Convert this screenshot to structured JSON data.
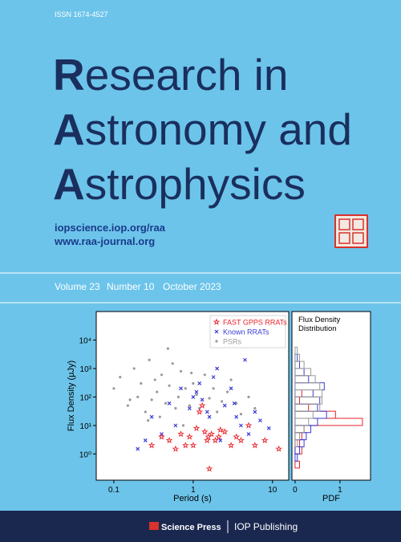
{
  "header": {
    "issn": "ISSN  1674-4527"
  },
  "title": {
    "lines": [
      {
        "initial": "R",
        "rest": "esearch in"
      },
      {
        "initial": "A",
        "rest": "stronomy and"
      },
      {
        "initial": "A",
        "rest": "strophysics"
      }
    ]
  },
  "links": [
    "iopscience.iop.org/raa",
    "www.raa-journal.org"
  ],
  "issue": {
    "volume": "Volume 23",
    "number": "Number 10",
    "date": "October 2023"
  },
  "figure": {
    "scatter": {
      "type": "scatter",
      "xlabel": "Period (s)",
      "ylabel": "Flux Density (µJy)",
      "log": true,
      "xlim": [
        0.06,
        16
      ],
      "ylim": [
        0.12,
        100000
      ],
      "xticks": [
        0.1,
        1,
        10
      ],
      "yticks": [
        {
          "value": 1,
          "label": "10⁰"
        },
        {
          "value": 10,
          "label": "10¹"
        },
        {
          "value": 100,
          "label": "10²"
        },
        {
          "value": 1000,
          "label": "10³"
        },
        {
          "value": 10000,
          "label": "10⁴"
        }
      ],
      "legend": "upper right",
      "series": [
        {
          "name": "FAST GPPS RRATs",
          "color": "#e8232a",
          "marker": "star",
          "x": [
            0.3,
            0.5,
            0.7,
            0.9,
            1.1,
            1.2,
            1.4,
            1.5,
            1.7,
            1.9,
            2.1,
            2.5,
            3,
            3.5,
            4,
            5,
            6,
            8,
            12,
            0.6,
            0.8,
            1.3,
            1.6,
            2.2,
            0.4,
            1.0,
            1.55
          ],
          "y": [
            2,
            3,
            5,
            4,
            8,
            30,
            6,
            3,
            5,
            3,
            4,
            6,
            2,
            4,
            3,
            10,
            2,
            3,
            1.5,
            1.5,
            2,
            50,
            0.3,
            7,
            4,
            2,
            4
          ]
        },
        {
          "name": "Known RRATs",
          "color": "#3a3ad6",
          "marker": "x",
          "x": [
            0.2,
            0.3,
            0.4,
            0.5,
            0.7,
            0.9,
            1,
            1.2,
            1.3,
            1.5,
            1.8,
            2,
            2.5,
            3,
            3.5,
            4,
            4.5,
            5,
            6,
            7,
            9,
            0.25,
            0.6,
            1.1,
            2.2,
            3.3,
            1.6
          ],
          "y": [
            1.5,
            20,
            5,
            60,
            200,
            40,
            100,
            300,
            80,
            30,
            500,
            1000,
            50,
            200,
            20,
            10,
            2000,
            5,
            30,
            15,
            8,
            3,
            10,
            150,
            3,
            60,
            20
          ]
        },
        {
          "name": "PSRs",
          "color": "#9a9a9a",
          "marker": "dot",
          "x": [
            0.1,
            0.12,
            0.15,
            0.18,
            0.2,
            0.22,
            0.25,
            0.28,
            0.3,
            0.33,
            0.35,
            0.4,
            0.45,
            0.5,
            0.55,
            0.6,
            0.65,
            0.7,
            0.8,
            0.9,
            1,
            1.1,
            1.2,
            1.4,
            1.6,
            1.8,
            2,
            2.3,
            2.7,
            3,
            3.5,
            4,
            5,
            6,
            0.38,
            0.48,
            0.75,
            0.95,
            0.27,
            0.16
          ],
          "y": [
            200,
            500,
            50,
            1000,
            100,
            300,
            30,
            2000,
            80,
            400,
            150,
            600,
            60,
            250,
            1500,
            40,
            100,
            800,
            200,
            50,
            300,
            120,
            40,
            600,
            90,
            200,
            30,
            70,
            150,
            400,
            60,
            25,
            100,
            40,
            20,
            5000,
            10,
            700,
            15,
            80
          ]
        }
      ]
    },
    "histogram": {
      "type": "histogram",
      "title_lines": [
        "Flux Density",
        "Distribution"
      ],
      "xlabel": "PDF",
      "xlim": [
        -0.07,
        1.68
      ],
      "xticks": [
        0,
        1
      ],
      "bins": [
        0.32,
        0.56,
        1,
        1.78,
        3.16,
        5.62,
        10,
        17.8,
        31.6,
        56.2,
        100,
        178,
        316,
        562,
        1000,
        1778,
        3162,
        5623,
        10000
      ],
      "series": [
        {
          "color": "#e8232a",
          "values": [
            0.1,
            0,
            0.15,
            0.1,
            0.15,
            0.2,
            1.5,
            0.9,
            0.3,
            0.1,
            0.15,
            0,
            0,
            0,
            0,
            0,
            0,
            0
          ]
        },
        {
          "color": "#3a3ad6",
          "values": [
            0,
            0.05,
            0.1,
            0.2,
            0.25,
            0.35,
            0.5,
            0.7,
            0.5,
            0.55,
            0.4,
            0.65,
            0.3,
            0.2,
            0.1,
            0.05,
            0,
            0
          ]
        },
        {
          "color": "#9a9a9a",
          "values": [
            0,
            0,
            0,
            0.05,
            0.1,
            0.2,
            0.3,
            0.4,
            0.55,
            0.6,
            0.6,
            0.55,
            0.45,
            0.35,
            0.2,
            0.1,
            0.05,
            0
          ]
        }
      ]
    }
  },
  "footer": {
    "left": "Science Press",
    "right": "IOP Publishing"
  }
}
